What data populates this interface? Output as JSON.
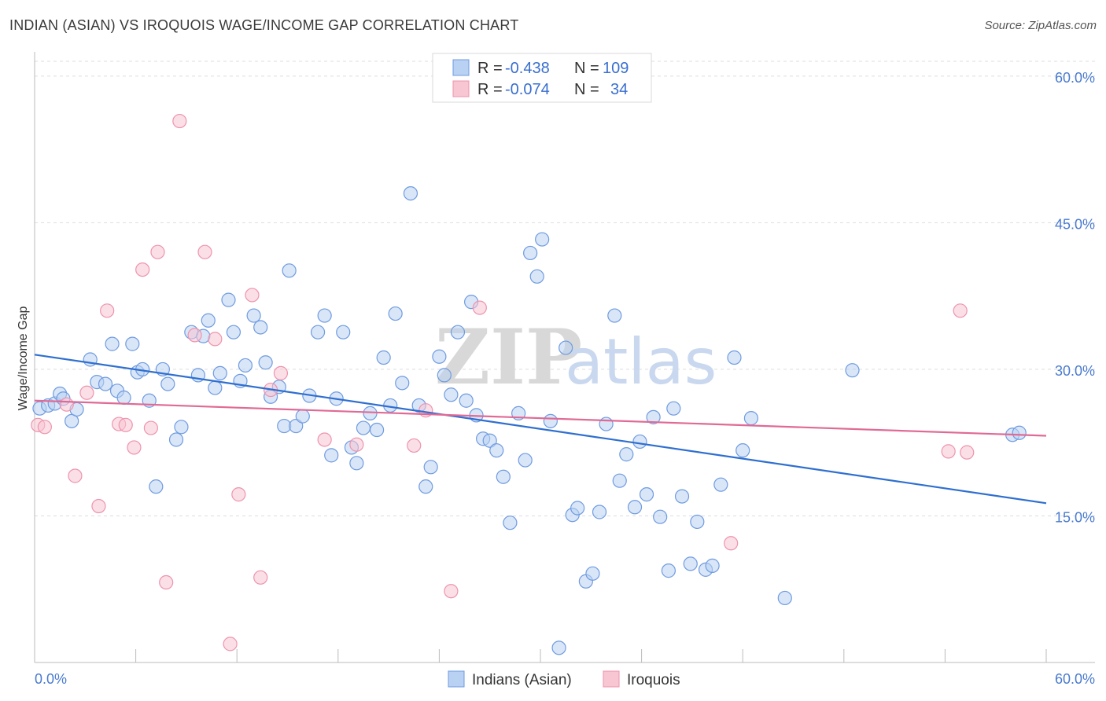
{
  "header": {
    "title": "INDIAN (ASIAN) VS IROQUOIS WAGE/INCOME GAP CORRELATION CHART",
    "source": "Source: ZipAtlas.com"
  },
  "watermark": {
    "zip": "ZIP",
    "atlas": "atlas"
  },
  "legend": {
    "r_label": "R =",
    "n_label": "N =",
    "series1": {
      "r": "-0.438",
      "n": "109"
    },
    "series2": {
      "r": "-0.074",
      "n": "34"
    }
  },
  "colors": {
    "blue_fill": "#b9d1f3",
    "blue_stroke": "#6f9be0",
    "blue_line": "#2f6fd0",
    "pink_fill": "#f8c5d3",
    "pink_stroke": "#ee93ad",
    "pink_line": "#e06a95",
    "grid": "#dddddd",
    "tick_text": "#4a7bd0"
  },
  "chart_data": {
    "type": "scatter",
    "title": "INDIAN (ASIAN) VS IROQUOIS WAGE/INCOME GAP CORRELATION CHART",
    "xlabel": "",
    "ylabel": "Wage/Income Gap",
    "xlim": [
      0,
      60
    ],
    "ylim": [
      0,
      62
    ],
    "x_tick_labels": [
      "0.0%",
      "60.0%"
    ],
    "y_ticks": [
      15,
      30,
      45,
      60
    ],
    "y_tick_labels": [
      "15.0%",
      "30.0%",
      "45.0%",
      "60.0%"
    ],
    "legend_position": "top-center",
    "series": [
      {
        "name": "Indians (Asian)",
        "r": -0.438,
        "n": 109,
        "trend": {
          "x": [
            0,
            60
          ],
          "y": [
            31.5,
            16.3
          ]
        },
        "points": [
          [
            0.3,
            26.0
          ],
          [
            0.8,
            26.3
          ],
          [
            1.2,
            26.5
          ],
          [
            1.5,
            27.5
          ],
          [
            1.7,
            27.0
          ],
          [
            2.2,
            24.7
          ],
          [
            2.5,
            25.9
          ],
          [
            3.3,
            31.0
          ],
          [
            3.7,
            28.7
          ],
          [
            4.2,
            28.5
          ],
          [
            4.6,
            32.6
          ],
          [
            4.9,
            27.8
          ],
          [
            5.3,
            27.1
          ],
          [
            5.8,
            32.6
          ],
          [
            6.1,
            29.7
          ],
          [
            6.4,
            30.0
          ],
          [
            6.8,
            26.8
          ],
          [
            7.2,
            18.0
          ],
          [
            7.6,
            30.0
          ],
          [
            7.9,
            28.5
          ],
          [
            8.4,
            22.8
          ],
          [
            8.7,
            24.1
          ],
          [
            9.3,
            33.8
          ],
          [
            9.7,
            29.4
          ],
          [
            10.0,
            33.4
          ],
          [
            10.3,
            35.0
          ],
          [
            10.7,
            28.1
          ],
          [
            11.0,
            29.6
          ],
          [
            11.5,
            37.1
          ],
          [
            11.8,
            33.8
          ],
          [
            12.2,
            28.8
          ],
          [
            12.5,
            30.4
          ],
          [
            13.0,
            35.5
          ],
          [
            13.4,
            34.3
          ],
          [
            13.7,
            30.7
          ],
          [
            14.0,
            27.2
          ],
          [
            14.5,
            28.2
          ],
          [
            14.8,
            24.2
          ],
          [
            15.1,
            40.1
          ],
          [
            15.5,
            24.2
          ],
          [
            15.9,
            25.2
          ],
          [
            16.3,
            27.3
          ],
          [
            16.8,
            33.8
          ],
          [
            17.2,
            35.5
          ],
          [
            17.6,
            21.2
          ],
          [
            17.9,
            27.0
          ],
          [
            18.3,
            33.8
          ],
          [
            18.8,
            22.0
          ],
          [
            19.1,
            20.4
          ],
          [
            19.5,
            24.0
          ],
          [
            19.9,
            25.5
          ],
          [
            20.3,
            23.8
          ],
          [
            20.7,
            31.2
          ],
          [
            21.1,
            26.3
          ],
          [
            21.4,
            35.7
          ],
          [
            21.8,
            28.6
          ],
          [
            22.3,
            48.0
          ],
          [
            22.8,
            26.3
          ],
          [
            23.2,
            18.0
          ],
          [
            23.5,
            20.0
          ],
          [
            24.0,
            31.3
          ],
          [
            24.3,
            29.4
          ],
          [
            24.7,
            27.4
          ],
          [
            25.1,
            33.8
          ],
          [
            25.6,
            26.8
          ],
          [
            25.9,
            36.9
          ],
          [
            26.2,
            25.3
          ],
          [
            26.6,
            22.9
          ],
          [
            27.0,
            22.7
          ],
          [
            27.4,
            21.7
          ],
          [
            27.8,
            19.0
          ],
          [
            28.2,
            14.3
          ],
          [
            28.7,
            25.5
          ],
          [
            29.1,
            20.7
          ],
          [
            29.4,
            41.9
          ],
          [
            29.8,
            39.5
          ],
          [
            30.1,
            43.3
          ],
          [
            30.6,
            24.7
          ],
          [
            31.1,
            1.5
          ],
          [
            31.5,
            32.2
          ],
          [
            31.9,
            15.1
          ],
          [
            32.2,
            15.8
          ],
          [
            32.7,
            8.3
          ],
          [
            33.1,
            9.1
          ],
          [
            33.5,
            15.4
          ],
          [
            33.9,
            24.4
          ],
          [
            34.4,
            35.5
          ],
          [
            34.7,
            18.6
          ],
          [
            35.1,
            21.3
          ],
          [
            35.6,
            15.9
          ],
          [
            35.9,
            22.6
          ],
          [
            36.3,
            17.2
          ],
          [
            36.7,
            25.1
          ],
          [
            37.1,
            14.9
          ],
          [
            37.6,
            9.4
          ],
          [
            37.9,
            26.0
          ],
          [
            38.4,
            17.0
          ],
          [
            38.9,
            10.1
          ],
          [
            39.3,
            14.4
          ],
          [
            39.8,
            9.5
          ],
          [
            40.2,
            9.9
          ],
          [
            40.7,
            18.2
          ],
          [
            41.5,
            31.2
          ],
          [
            42.0,
            21.7
          ],
          [
            42.5,
            25.0
          ],
          [
            44.5,
            6.6
          ],
          [
            48.5,
            29.9
          ],
          [
            58.0,
            23.3
          ],
          [
            58.4,
            23.5
          ]
        ]
      },
      {
        "name": "Iroquois",
        "r": -0.074,
        "n": 34,
        "trend": {
          "x": [
            0,
            60
          ],
          "y": [
            26.8,
            23.2
          ]
        },
        "points": [
          [
            0.2,
            24.3
          ],
          [
            0.6,
            24.1
          ],
          [
            1.9,
            26.4
          ],
          [
            2.4,
            19.1
          ],
          [
            3.1,
            27.6
          ],
          [
            3.8,
            16.0
          ],
          [
            4.3,
            36.0
          ],
          [
            5.0,
            24.4
          ],
          [
            5.4,
            24.3
          ],
          [
            5.9,
            22.0
          ],
          [
            6.4,
            40.2
          ],
          [
            6.9,
            24.0
          ],
          [
            7.3,
            42.0
          ],
          [
            7.8,
            8.2
          ],
          [
            8.6,
            55.4
          ],
          [
            9.5,
            33.5
          ],
          [
            10.1,
            42.0
          ],
          [
            10.7,
            33.1
          ],
          [
            11.6,
            1.9
          ],
          [
            12.1,
            17.2
          ],
          [
            12.9,
            37.6
          ],
          [
            13.4,
            8.7
          ],
          [
            14.0,
            27.9
          ],
          [
            14.6,
            29.6
          ],
          [
            17.2,
            22.8
          ],
          [
            19.1,
            22.3
          ],
          [
            22.5,
            22.2
          ],
          [
            23.2,
            25.8
          ],
          [
            24.7,
            7.3
          ],
          [
            26.4,
            36.3
          ],
          [
            41.3,
            12.2
          ],
          [
            54.2,
            21.6
          ],
          [
            54.9,
            36.0
          ],
          [
            55.3,
            21.5
          ]
        ]
      }
    ]
  },
  "bottom_legend": {
    "item1": "Indians (Asian)",
    "item2": "Iroquois"
  }
}
